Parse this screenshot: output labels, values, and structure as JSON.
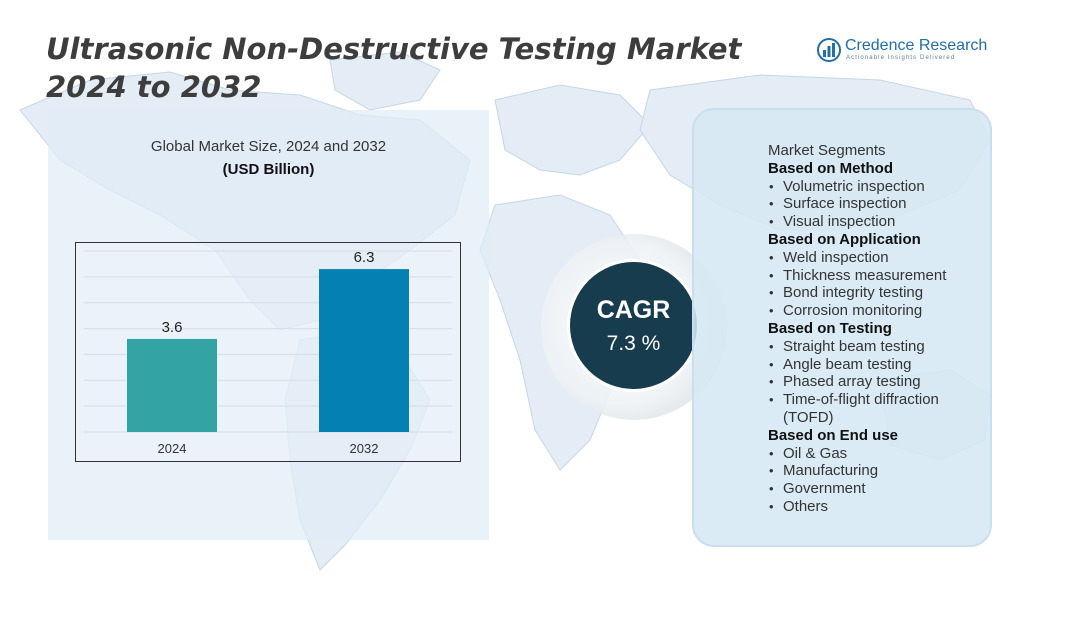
{
  "title": "Ultrasonic Non-Destructive Testing Market 2024 to 2032",
  "logo": {
    "name": "Credence Research",
    "tagline": "Actionable Insights Delivered",
    "color": "#1f6fa8"
  },
  "chart_data": {
    "type": "bar",
    "title": "Global Market Size,  2024 and 2032",
    "ylabel": "(USD Billion)",
    "categories": [
      "2024",
      "2032"
    ],
    "values": [
      3.6,
      6.3
    ],
    "data_labels": [
      "3.6",
      "6.3"
    ],
    "colors": [
      "#33a3a3",
      "#0580b3"
    ],
    "ylim": [
      0,
      7
    ],
    "grid": true,
    "legend": "none"
  },
  "cagr": {
    "label": "CAGR",
    "value": "7.3 %",
    "color": "#173c4d"
  },
  "segments": {
    "heading": "Market Segments",
    "groups": [
      {
        "title": "Based on Method",
        "items": [
          "Volumetric inspection",
          "Surface inspection",
          "Visual inspection"
        ]
      },
      {
        "title": "Based on Application",
        "items": [
          "Weld inspection",
          "Thickness measurement",
          "Bond integrity testing",
          "Corrosion monitoring"
        ]
      },
      {
        "title": "Based on Testing",
        "items": [
          "Straight beam testing",
          "Angle beam testing",
          "Phased array testing",
          "Time-of-flight diffraction (TOFD)"
        ]
      },
      {
        "title": "Based on End use",
        "items": [
          "Oil & Gas",
          "Manufacturing",
          "Government",
          "Others"
        ]
      }
    ],
    "bullet": "•"
  }
}
